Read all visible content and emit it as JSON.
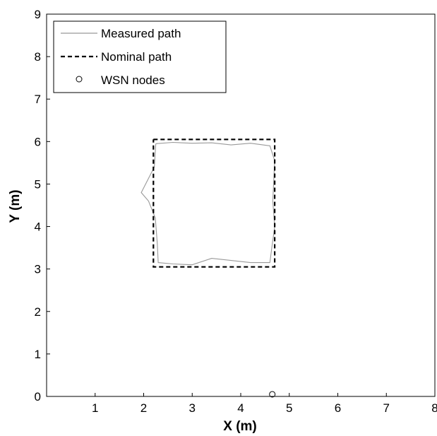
{
  "chart_data": {
    "type": "line",
    "title": "",
    "xlabel": "X (m)",
    "ylabel": "Y (m)",
    "xlim": [
      0,
      8
    ],
    "ylim": [
      0,
      9
    ],
    "xticks": [
      "1",
      "2",
      "3",
      "4",
      "5",
      "6",
      "7",
      "8"
    ],
    "yticks": [
      "0",
      "1",
      "2",
      "3",
      "4",
      "5",
      "6",
      "7",
      "8",
      "9"
    ],
    "grid": false,
    "legend": {
      "position": "top-left",
      "entries": [
        {
          "label": "Measured path",
          "style": "gray-solid-line"
        },
        {
          "label": "Nominal path",
          "style": "black-dashed-line"
        },
        {
          "label": "WSN nodes",
          "style": "circle-marker"
        }
      ]
    },
    "series": [
      {
        "name": "Measured path",
        "color": "#999999",
        "x": [
          2.25,
          2.6,
          3.0,
          3.4,
          3.8,
          4.2,
          4.6,
          4.7,
          4.68,
          4.66,
          4.7,
          4.64,
          4.6,
          4.2,
          3.8,
          3.4,
          3.0,
          2.6,
          2.3,
          2.28,
          2.24,
          2.1,
          1.95,
          2.22,
          2.25
        ],
        "y": [
          5.95,
          5.98,
          5.96,
          5.97,
          5.92,
          5.96,
          5.9,
          5.55,
          5.1,
          4.6,
          4.0,
          3.5,
          3.15,
          3.15,
          3.2,
          3.25,
          3.1,
          3.12,
          3.15,
          3.6,
          4.2,
          4.6,
          4.8,
          5.4,
          5.95
        ]
      },
      {
        "name": "Nominal path",
        "color": "#000000",
        "x": [
          2.2,
          4.7,
          4.7,
          2.2,
          2.2
        ],
        "y": [
          6.05,
          6.05,
          3.05,
          3.05,
          6.05
        ]
      }
    ],
    "nodes": {
      "name": "WSN nodes",
      "x": [
        4.65
      ],
      "y": [
        0.05
      ]
    }
  }
}
